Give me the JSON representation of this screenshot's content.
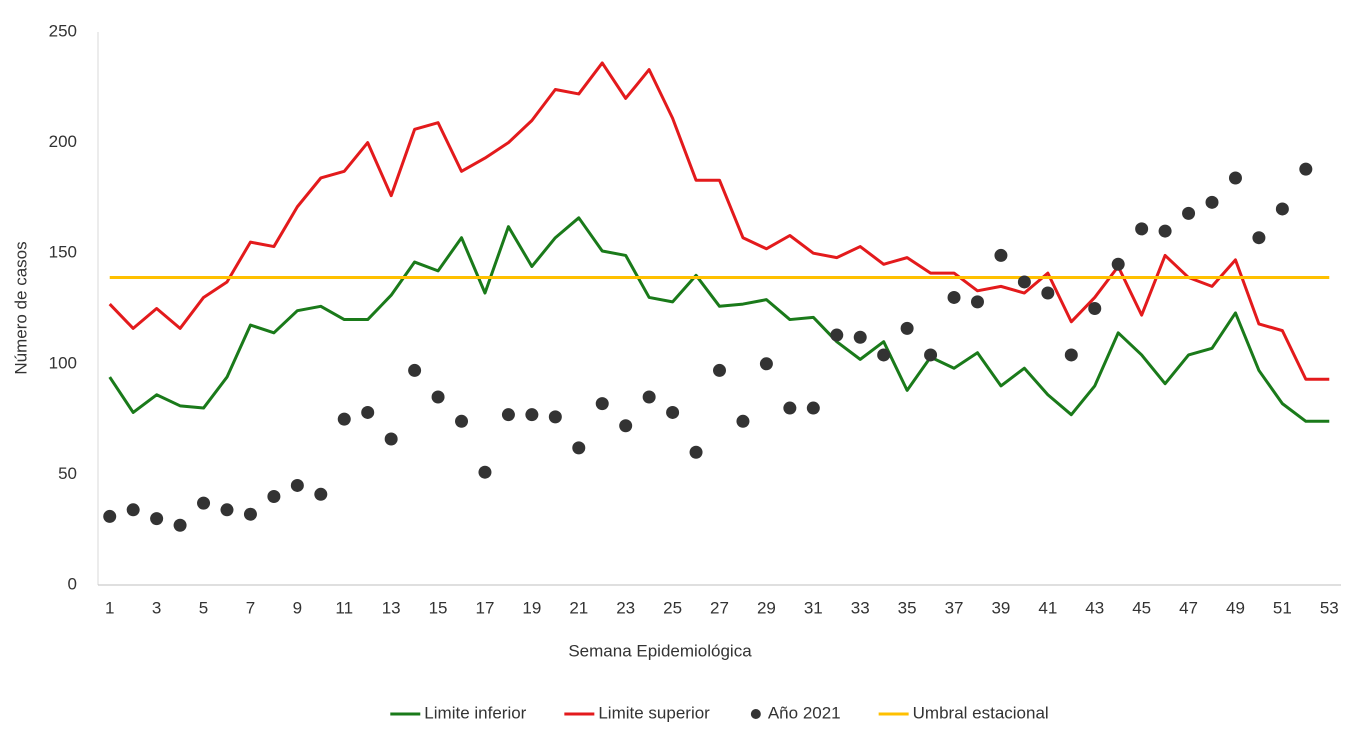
{
  "chart_data": {
    "type": "line",
    "x_label": "Semana Epidemiológica",
    "y_label": "Número de casos",
    "x": [
      1,
      2,
      3,
      4,
      5,
      6,
      7,
      8,
      9,
      10,
      11,
      12,
      13,
      14,
      15,
      16,
      17,
      18,
      19,
      20,
      21,
      22,
      23,
      24,
      25,
      26,
      27,
      28,
      29,
      30,
      31,
      32,
      33,
      34,
      35,
      36,
      37,
      38,
      39,
      40,
      41,
      42,
      43,
      44,
      45,
      46,
      47,
      48,
      49,
      50,
      51,
      52,
      53
    ],
    "xlim": [
      0.5,
      53.5
    ],
    "xticks": [
      1,
      3,
      5,
      7,
      9,
      11,
      13,
      15,
      17,
      19,
      21,
      23,
      25,
      27,
      29,
      31,
      33,
      35,
      37,
      39,
      41,
      43,
      45,
      47,
      49,
      51,
      53
    ],
    "ylim": [
      0,
      250
    ],
    "yticks": [
      0,
      50,
      100,
      150,
      200,
      250
    ],
    "grid": false,
    "legend": "bottom",
    "series": [
      {
        "name": "Limite inferior",
        "color": "#1a7a1a",
        "style": "line",
        "values": [
          94,
          78,
          86,
          81,
          80,
          94,
          117.5,
          114,
          124,
          126,
          120,
          120,
          131,
          146,
          142,
          157,
          132,
          162,
          144,
          157,
          166,
          151,
          149,
          130,
          128,
          140,
          126,
          127,
          129,
          120,
          121,
          110,
          102,
          110,
          88,
          103,
          98,
          105,
          90,
          98,
          86,
          77,
          90,
          114,
          104,
          91,
          104,
          107,
          123,
          97,
          82,
          74,
          74
        ]
      },
      {
        "name": "Limite superior",
        "color": "#e31a1c",
        "style": "line",
        "values": [
          127,
          116,
          125,
          116,
          130,
          137,
          155,
          153,
          171,
          184,
          187,
          200,
          176,
          206,
          209,
          187,
          193,
          200,
          210,
          224,
          222,
          236,
          220,
          233,
          211,
          183,
          183,
          157,
          152,
          158,
          150,
          148,
          153,
          145,
          148,
          141,
          141,
          133,
          135,
          132,
          141,
          119,
          130,
          144,
          122,
          149,
          139,
          135,
          147,
          118,
          115,
          93,
          93
        ]
      },
      {
        "name": "Año 2021",
        "color": "#333333",
        "style": "markers",
        "values": [
          31,
          34,
          30,
          27,
          37,
          34,
          32,
          40,
          45,
          41,
          75,
          78,
          66,
          97,
          85,
          74,
          51,
          77,
          77,
          76,
          62,
          82,
          72,
          85,
          78,
          60,
          97,
          74,
          100,
          80,
          80,
          113,
          112,
          104,
          116,
          104,
          130,
          128,
          149,
          137,
          132,
          104,
          125,
          145,
          161,
          160,
          168,
          173,
          184,
          157,
          170,
          188,
          null
        ]
      },
      {
        "name": "Umbral estacional",
        "color": "#ffc000",
        "style": "line",
        "values": [
          139,
          139,
          139,
          139,
          139,
          139,
          139,
          139,
          139,
          139,
          139,
          139,
          139,
          139,
          139,
          139,
          139,
          139,
          139,
          139,
          139,
          139,
          139,
          139,
          139,
          139,
          139,
          139,
          139,
          139,
          139,
          139,
          139,
          139,
          139,
          139,
          139,
          139,
          139,
          139,
          139,
          139,
          139,
          139,
          139,
          139,
          139,
          139,
          139,
          139,
          139,
          139,
          139
        ]
      }
    ]
  }
}
